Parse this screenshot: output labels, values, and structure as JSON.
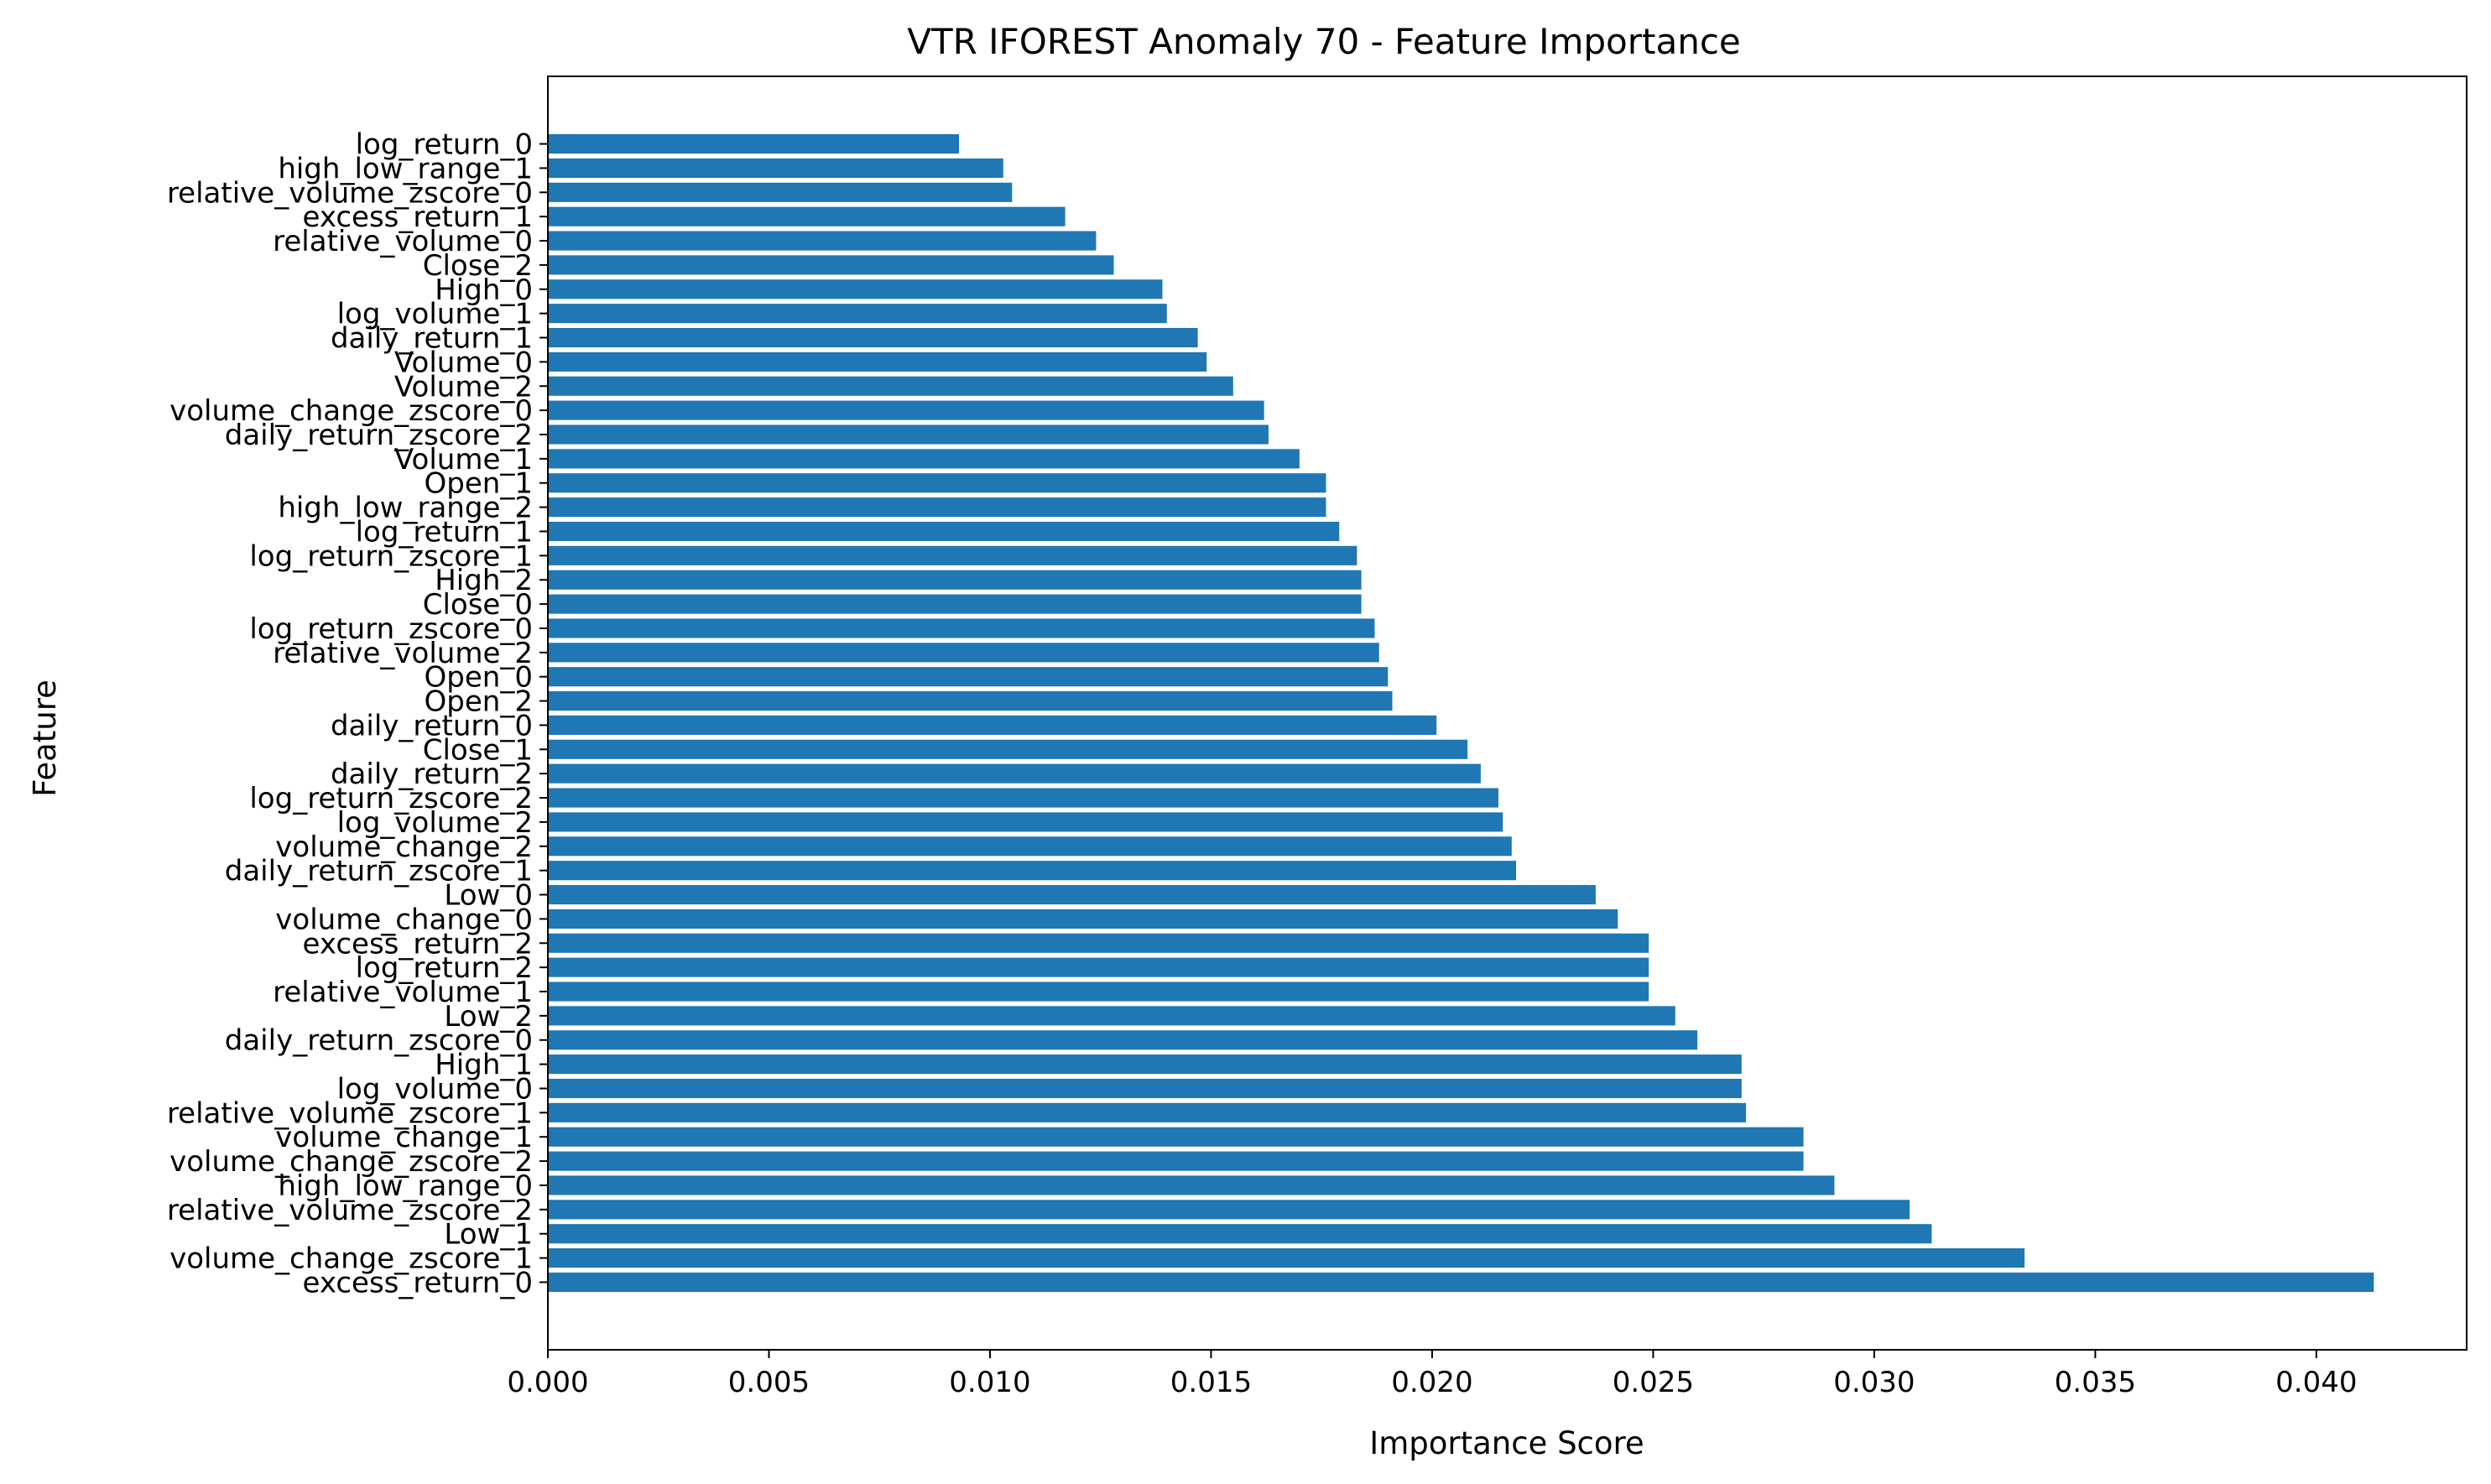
{
  "chart_data": {
    "type": "bar",
    "orientation": "horizontal",
    "title": "VTR IFOREST Anomaly 70 - Feature Importance",
    "xlabel": "Importance Score",
    "ylabel": "Feature",
    "xlim": [
      0.0,
      0.0434
    ],
    "xticks": [
      0.0,
      0.005,
      0.01,
      0.015,
      0.02,
      0.025,
      0.03,
      0.035,
      0.04
    ],
    "xtick_labels": [
      "0.000",
      "0.005",
      "0.010",
      "0.015",
      "0.020",
      "0.025",
      "0.030",
      "0.035",
      "0.040"
    ],
    "grid": false,
    "bar_color": "#1f77b4",
    "categories": [
      "log_return_0",
      "high_low_range_1",
      "relative_volume_zscore_0",
      "excess_return_1",
      "relative_volume_0",
      "Close_2",
      "High_0",
      "log_volume_1",
      "daily_return_1",
      "Volume_0",
      "Volume_2",
      "volume_change_zscore_0",
      "daily_return_zscore_2",
      "Volume_1",
      "Open_1",
      "high_low_range_2",
      "log_return_1",
      "log_return_zscore_1",
      "High_2",
      "Close_0",
      "log_return_zscore_0",
      "relative_volume_2",
      "Open_0",
      "Open_2",
      "daily_return_0",
      "Close_1",
      "daily_return_2",
      "log_return_zscore_2",
      "log_volume_2",
      "volume_change_2",
      "daily_return_zscore_1",
      "Low_0",
      "volume_change_0",
      "excess_return_2",
      "log_return_2",
      "relative_volume_1",
      "Low_2",
      "daily_return_zscore_0",
      "High_1",
      "log_volume_0",
      "relative_volume_zscore_1",
      "volume_change_1",
      "volume_change_zscore_2",
      "high_low_range_0",
      "relative_volume_zscore_2",
      "Low_1",
      "volume_change_zscore_1",
      "excess_return_0"
    ],
    "values": [
      0.0093,
      0.0103,
      0.0105,
      0.0117,
      0.0124,
      0.0128,
      0.0139,
      0.014,
      0.0147,
      0.0149,
      0.0155,
      0.0162,
      0.0163,
      0.017,
      0.0176,
      0.0176,
      0.0179,
      0.0183,
      0.0184,
      0.0184,
      0.0187,
      0.0188,
      0.019,
      0.0191,
      0.0201,
      0.0208,
      0.0211,
      0.0215,
      0.0216,
      0.0218,
      0.0219,
      0.0237,
      0.0242,
      0.0249,
      0.0249,
      0.0249,
      0.0255,
      0.026,
      0.027,
      0.027,
      0.0271,
      0.0284,
      0.0284,
      0.0291,
      0.0308,
      0.0313,
      0.0334,
      0.0413
    ]
  }
}
